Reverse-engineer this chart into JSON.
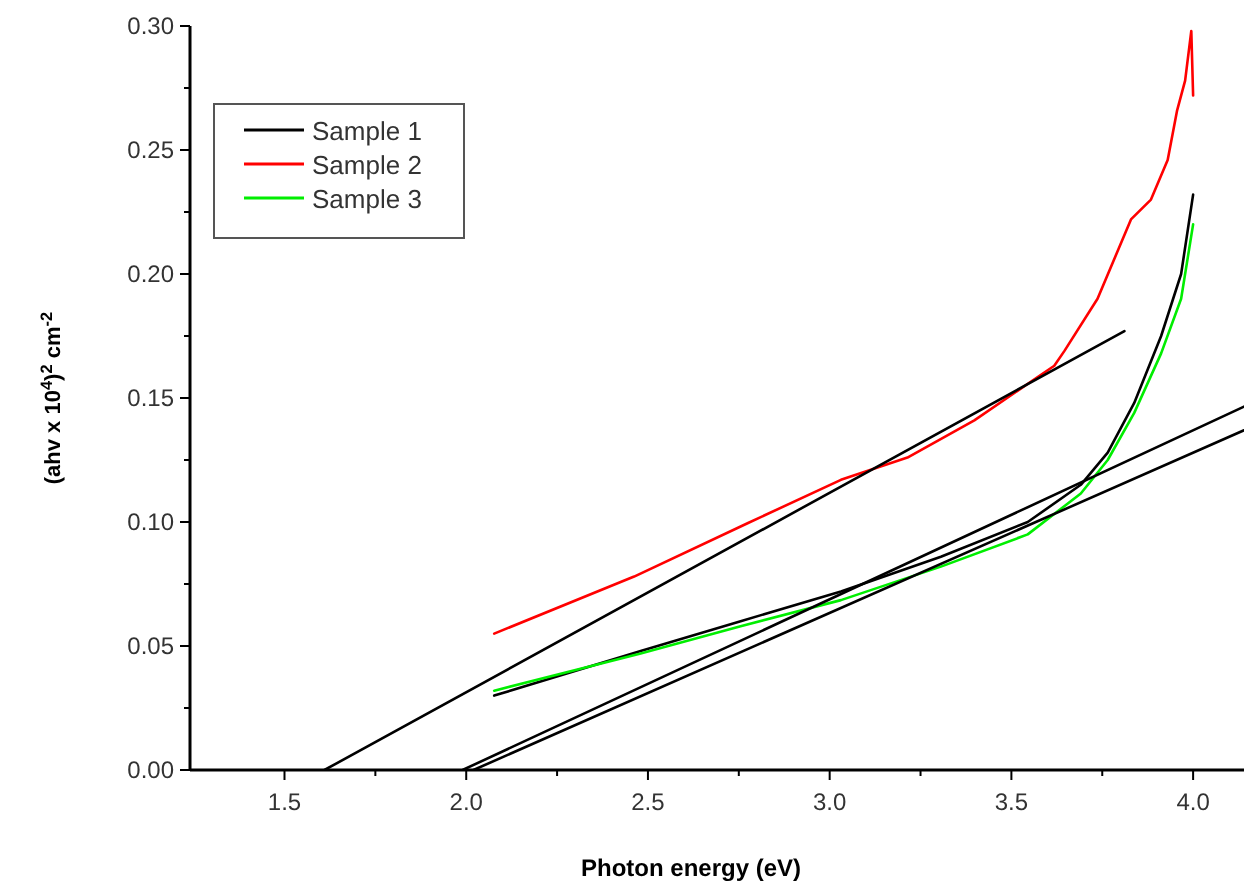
{
  "chart_data": {
    "type": "line",
    "xlabel": "Photon energy (eV)",
    "ylabel": "(ahv x 10$^{4}$)$^{2}$ cm$^{-2}$",
    "xlim": [
      1.24,
      4.14
    ],
    "xticks": [
      1.5,
      {
        "value": 2,
        "label": "2.0"
      },
      2.5,
      {
        "value": 3,
        "label": "3.0"
      },
      3.5,
      {
        "value": 4,
        "label": "4.0"
      }
    ],
    "ylim": [
      0,
      0.3
    ],
    "yticks": [
      {
        "value": 0,
        "label": "0.00"
      },
      0.05,
      {
        "value": 0.1,
        "label": "0.10"
      },
      0.15,
      {
        "value": 0.2,
        "label": "0.20"
      },
      0.25,
      {
        "value": 0.3,
        "label": "0.30"
      }
    ],
    "legend": "top left",
    "grid": false,
    "line_style": "solid",
    "series": [
      {
        "name": "Sample 1",
        "color": "#000000",
        "x": [
          2.077,
          2.48,
          2.755,
          3.031,
          3.306,
          3.545,
          3.691,
          3.765,
          3.838,
          3.912,
          3.967,
          4.0
        ],
        "values": [
          0.03,
          0.048,
          0.06,
          0.072,
          0.086,
          0.1,
          0.115,
          0.128,
          0.148,
          0.175,
          0.2,
          0.232
        ]
      },
      {
        "name": "Sample 2",
        "color": "#ff0000",
        "x": [
          2.077,
          2.462,
          2.774,
          3.031,
          3.214,
          3.398,
          3.618,
          3.646,
          3.737,
          3.829,
          3.884,
          3.93,
          3.956,
          3.978,
          3.995,
          4.0
        ],
        "values": [
          0.055,
          0.078,
          0.0995,
          0.117,
          0.126,
          0.141,
          0.163,
          0.169,
          0.19,
          0.222,
          0.23,
          0.246,
          0.266,
          0.278,
          0.298,
          0.272
        ]
      },
      {
        "name": "Sample 3",
        "color": "#00ee00",
        "x": [
          2.077,
          2.48,
          2.755,
          3.031,
          3.306,
          3.545,
          3.691,
          3.765,
          3.838,
          3.912,
          3.967,
          4.0
        ],
        "values": [
          0.032,
          0.047,
          0.058,
          0.0685,
          0.082,
          0.095,
          0.1115,
          0.125,
          0.144,
          0.168,
          0.19,
          0.22
        ]
      },
      {
        "type": "line",
        "color": "#000000",
        "x": [
          1.61,
          3.811
        ],
        "values": [
          0,
          0.177
        ]
      },
      {
        "type": "line",
        "color": "#000000",
        "x": [
          1.99,
          4.14
        ],
        "values": [
          0,
          0.1465
        ]
      },
      {
        "type": "line",
        "color": "#000000",
        "x": [
          2.02,
          4.14
        ],
        "values": [
          0,
          0.137
        ]
      }
    ]
  }
}
